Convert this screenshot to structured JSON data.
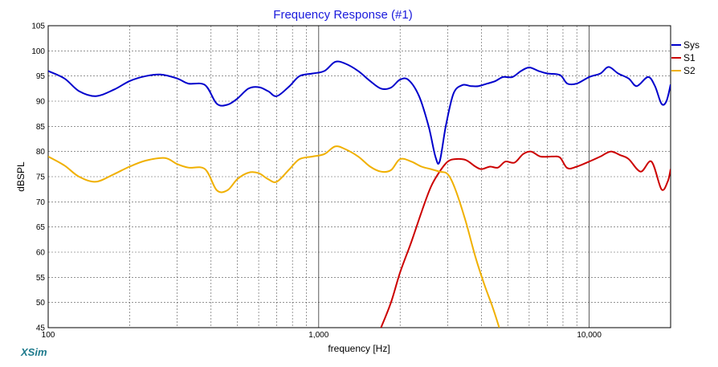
{
  "chart_data": {
    "type": "line",
    "title": "Frequency Response (#1)",
    "xlabel": "frequency [Hz]",
    "ylabel": "dBSPL",
    "x_scale": "log",
    "xlim": [
      100,
      20000
    ],
    "ylim": [
      45,
      105
    ],
    "y_ticks": [
      45,
      50,
      55,
      60,
      65,
      70,
      75,
      80,
      85,
      90,
      95,
      100,
      105
    ],
    "x_tick_labels": [
      {
        "value": 100,
        "label": "100"
      },
      {
        "value": 1000,
        "label": "1,000"
      },
      {
        "value": 10000,
        "label": "10,000"
      }
    ],
    "grid": true,
    "legend_position": "right",
    "series": [
      {
        "name": "Sys",
        "color": "#0000cc",
        "points": [
          [
            100,
            96
          ],
          [
            115,
            94.5
          ],
          [
            130,
            92
          ],
          [
            150,
            91
          ],
          [
            175,
            92.3
          ],
          [
            200,
            94
          ],
          [
            230,
            95
          ],
          [
            260,
            95.3
          ],
          [
            300,
            94.5
          ],
          [
            330,
            93.5
          ],
          [
            380,
            93.2
          ],
          [
            420,
            89.5
          ],
          [
            460,
            89.3
          ],
          [
            500,
            90.5
          ],
          [
            550,
            92.5
          ],
          [
            600,
            92.8
          ],
          [
            650,
            92
          ],
          [
            700,
            91
          ],
          [
            780,
            93
          ],
          [
            850,
            95
          ],
          [
            950,
            95.5
          ],
          [
            1050,
            96
          ],
          [
            1150,
            97.8
          ],
          [
            1250,
            97.5
          ],
          [
            1400,
            96
          ],
          [
            1550,
            94
          ],
          [
            1700,
            92.5
          ],
          [
            1850,
            92.7
          ],
          [
            2000,
            94.3
          ],
          [
            2150,
            94.2
          ],
          [
            2350,
            91
          ],
          [
            2550,
            85
          ],
          [
            2700,
            79
          ],
          [
            2800,
            78
          ],
          [
            2950,
            85
          ],
          [
            3150,
            91.5
          ],
          [
            3400,
            93.2
          ],
          [
            3650,
            93
          ],
          [
            3900,
            93
          ],
          [
            4200,
            93.5
          ],
          [
            4500,
            94
          ],
          [
            4800,
            94.8
          ],
          [
            5200,
            94.8
          ],
          [
            5600,
            96
          ],
          [
            6000,
            96.7
          ],
          [
            6500,
            96
          ],
          [
            7000,
            95.5
          ],
          [
            7800,
            95.2
          ],
          [
            8300,
            93.5
          ],
          [
            9000,
            93.5
          ],
          [
            10000,
            94.8
          ],
          [
            11000,
            95.5
          ],
          [
            11800,
            96.8
          ],
          [
            12800,
            95.5
          ],
          [
            14000,
            94.5
          ],
          [
            15000,
            93
          ],
          [
            16500,
            94.8
          ],
          [
            17500,
            93
          ],
          [
            18500,
            89.5
          ],
          [
            19300,
            90
          ],
          [
            20000,
            93.3
          ]
        ]
      },
      {
        "name": "S1",
        "color": "#cc0000",
        "points": [
          [
            1700,
            45
          ],
          [
            1850,
            50
          ],
          [
            2000,
            56
          ],
          [
            2200,
            62
          ],
          [
            2400,
            68
          ],
          [
            2600,
            73
          ],
          [
            2800,
            76
          ],
          [
            3000,
            78
          ],
          [
            3200,
            78.5
          ],
          [
            3500,
            78.3
          ],
          [
            3800,
            77
          ],
          [
            4000,
            76.5
          ],
          [
            4300,
            77
          ],
          [
            4600,
            76.8
          ],
          [
            4900,
            78
          ],
          [
            5300,
            77.8
          ],
          [
            5700,
            79.5
          ],
          [
            6100,
            80
          ],
          [
            6600,
            79
          ],
          [
            7300,
            79
          ],
          [
            7800,
            78.8
          ],
          [
            8300,
            76.7
          ],
          [
            9000,
            77
          ],
          [
            10000,
            78
          ],
          [
            11000,
            79
          ],
          [
            12000,
            80
          ],
          [
            13000,
            79.3
          ],
          [
            14000,
            78.5
          ],
          [
            15500,
            76
          ],
          [
            17000,
            78
          ],
          [
            18500,
            72.5
          ],
          [
            19500,
            74
          ],
          [
            20000,
            76.5
          ]
        ]
      },
      {
        "name": "S2",
        "color": "#f0b000",
        "points": [
          [
            100,
            79
          ],
          [
            115,
            77.2
          ],
          [
            130,
            75
          ],
          [
            150,
            74
          ],
          [
            175,
            75.5
          ],
          [
            200,
            77
          ],
          [
            230,
            78.2
          ],
          [
            270,
            78.7
          ],
          [
            300,
            77.5
          ],
          [
            330,
            76.8
          ],
          [
            380,
            76.5
          ],
          [
            420,
            72.3
          ],
          [
            460,
            72.3
          ],
          [
            500,
            74.5
          ],
          [
            550,
            75.8
          ],
          [
            600,
            75.7
          ],
          [
            650,
            74.5
          ],
          [
            700,
            74
          ],
          [
            780,
            76.5
          ],
          [
            850,
            78.5
          ],
          [
            950,
            79
          ],
          [
            1050,
            79.5
          ],
          [
            1150,
            81
          ],
          [
            1250,
            80.5
          ],
          [
            1400,
            79
          ],
          [
            1550,
            77
          ],
          [
            1700,
            76
          ],
          [
            1850,
            76.3
          ],
          [
            2000,
            78.5
          ],
          [
            2200,
            78
          ],
          [
            2400,
            77
          ],
          [
            2600,
            76.5
          ],
          [
            2800,
            76
          ],
          [
            3000,
            75.5
          ],
          [
            3200,
            72.5
          ],
          [
            3500,
            66
          ],
          [
            3800,
            59
          ],
          [
            4100,
            53.5
          ],
          [
            4400,
            49
          ],
          [
            4650,
            45
          ]
        ]
      }
    ]
  },
  "brand": {
    "name": "XSim"
  }
}
